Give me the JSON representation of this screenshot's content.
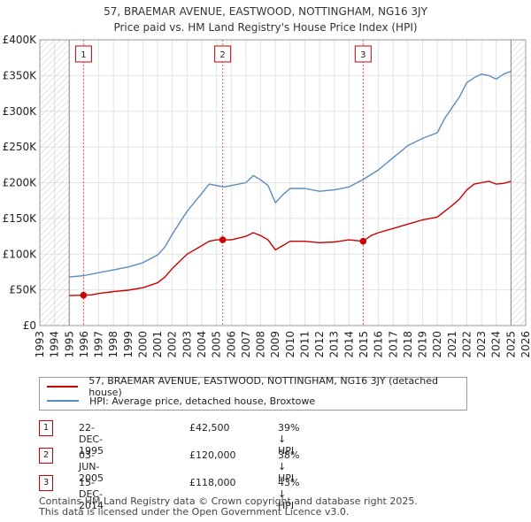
{
  "title_line1": "57, BRAEMAR AVENUE, EASTWOOD, NOTTINGHAM, NG16 3JY",
  "title_line2": "Price paid vs. HM Land Registry's House Price Index (HPI)",
  "chart_data": {
    "type": "line",
    "xlim": [
      1993,
      2026
    ],
    "ylim": [
      0,
      400000
    ],
    "x_ticks": [
      "1993",
      "1994",
      "1995",
      "1996",
      "1997",
      "1998",
      "1999",
      "2000",
      "2001",
      "2002",
      "2003",
      "2004",
      "2005",
      "2006",
      "2007",
      "2008",
      "2009",
      "2010",
      "2011",
      "2012",
      "2013",
      "2014",
      "2015",
      "2016",
      "2017",
      "2018",
      "2019",
      "2020",
      "2021",
      "2022",
      "2023",
      "2024",
      "2025",
      "2026"
    ],
    "y_ticks": [
      {
        "value": 0,
        "label": "£0"
      },
      {
        "value": 50000,
        "label": "£50K"
      },
      {
        "value": 100000,
        "label": "£100K"
      },
      {
        "value": 150000,
        "label": "£150K"
      },
      {
        "value": 200000,
        "label": "£200K"
      },
      {
        "value": 250000,
        "label": "£250K"
      },
      {
        "value": 300000,
        "label": "£300K"
      },
      {
        "value": 350000,
        "label": "£350K"
      },
      {
        "value": 400000,
        "label": "£400K"
      }
    ],
    "hatched_ranges": [
      [
        1993,
        1995.0
      ],
      [
        2025.0,
        2026
      ]
    ],
    "series": [
      {
        "name": "57, BRAEMAR AVENUE, EASTWOOD, NOTTINGHAM, NG16 3JY (detached house)",
        "color": "#cc0000",
        "points": [
          [
            1995.0,
            42000
          ],
          [
            1995.97,
            42500
          ],
          [
            1996.5,
            43000
          ],
          [
            1997,
            45000
          ],
          [
            1998,
            47500
          ],
          [
            1999,
            49500
          ],
          [
            2000,
            53000
          ],
          [
            2001,
            60000
          ],
          [
            2001.5,
            68000
          ],
          [
            2002,
            80000
          ],
          [
            2003,
            100000
          ],
          [
            2004,
            112000
          ],
          [
            2004.5,
            118000
          ],
          [
            2005.0,
            120000
          ],
          [
            2005.42,
            120000
          ],
          [
            2006,
            120000
          ],
          [
            2007,
            125000
          ],
          [
            2007.5,
            130000
          ],
          [
            2008,
            126000
          ],
          [
            2008.5,
            120000
          ],
          [
            2009,
            106000
          ],
          [
            2009.5,
            112000
          ],
          [
            2010,
            118000
          ],
          [
            2011,
            118000
          ],
          [
            2012,
            116000
          ],
          [
            2013,
            117000
          ],
          [
            2014,
            120000
          ],
          [
            2014.96,
            118000
          ],
          [
            2015.5,
            126000
          ],
          [
            2016,
            130000
          ],
          [
            2017,
            136000
          ],
          [
            2018,
            142000
          ],
          [
            2019,
            148000
          ],
          [
            2020,
            152000
          ],
          [
            2020.5,
            160000
          ],
          [
            2021,
            168000
          ],
          [
            2021.5,
            177000
          ],
          [
            2022,
            190000
          ],
          [
            2022.5,
            198000
          ],
          [
            2023,
            200000
          ],
          [
            2023.5,
            202000
          ],
          [
            2024,
            198000
          ],
          [
            2024.5,
            199000
          ],
          [
            2025.0,
            202000
          ]
        ]
      },
      {
        "name": "HPI: Average price, detached house, Broxtowe",
        "color": "#5b8cc0",
        "points": [
          [
            1995.0,
            68000
          ],
          [
            1996,
            70000
          ],
          [
            1997,
            74000
          ],
          [
            1998,
            78000
          ],
          [
            1999,
            82000
          ],
          [
            2000,
            88000
          ],
          [
            2001,
            99000
          ],
          [
            2001.5,
            110000
          ],
          [
            2002,
            128000
          ],
          [
            2003,
            160000
          ],
          [
            2004,
            185000
          ],
          [
            2004.5,
            198000
          ],
          [
            2005,
            196000
          ],
          [
            2005.5,
            194000
          ],
          [
            2006,
            196000
          ],
          [
            2007,
            200000
          ],
          [
            2007.5,
            210000
          ],
          [
            2008,
            204000
          ],
          [
            2008.5,
            196000
          ],
          [
            2009,
            172000
          ],
          [
            2009.5,
            183000
          ],
          [
            2010,
            192000
          ],
          [
            2011,
            192000
          ],
          [
            2012,
            188000
          ],
          [
            2013,
            190000
          ],
          [
            2014,
            194000
          ],
          [
            2015,
            205000
          ],
          [
            2016,
            218000
          ],
          [
            2017,
            235000
          ],
          [
            2018,
            252000
          ],
          [
            2019,
            262000
          ],
          [
            2020,
            270000
          ],
          [
            2020.5,
            290000
          ],
          [
            2021,
            305000
          ],
          [
            2021.5,
            320000
          ],
          [
            2022,
            340000
          ],
          [
            2022.5,
            347000
          ],
          [
            2023,
            352000
          ],
          [
            2023.5,
            350000
          ],
          [
            2024,
            345000
          ],
          [
            2024.5,
            352000
          ],
          [
            2025.0,
            356000
          ]
        ]
      }
    ],
    "sales": [
      {
        "n": "1",
        "x": 1995.97,
        "price": 42500
      },
      {
        "n": "2",
        "x": 2005.42,
        "price": 120000
      },
      {
        "n": "3",
        "x": 2014.96,
        "price": 118000
      }
    ]
  },
  "legend": {
    "red_label": "57, BRAEMAR AVENUE, EASTWOOD, NOTTINGHAM, NG16 3JY (detached house)",
    "blue_label": "HPI: Average price, detached house, Broxtowe",
    "red_color": "#cc0000",
    "blue_color": "#5b8cc0"
  },
  "sales_table": [
    {
      "n": "1",
      "date": "22-DEC-1995",
      "price": "£42,500",
      "hpi": "39% ↓ HPI"
    },
    {
      "n": "2",
      "date": "03-JUN-2005",
      "price": "£120,000",
      "hpi": "38% ↓ HPI"
    },
    {
      "n": "3",
      "date": "15-DEC-2014",
      "price": "£118,000",
      "hpi": "43% ↓ HPI"
    }
  ],
  "footer_line1": "Contains HM Land Registry data © Crown copyright and database right 2025.",
  "footer_line2": "This data is licensed under the Open Government Licence v3.0."
}
